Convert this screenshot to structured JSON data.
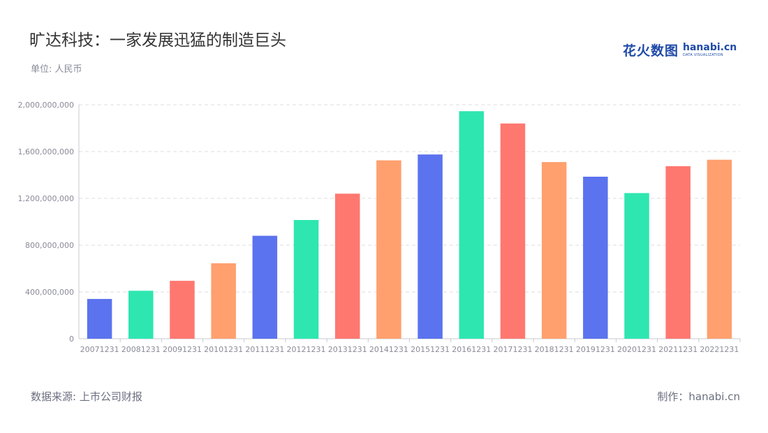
{
  "header": {
    "title": "旷达科技：一家发展迅猛的制造巨头",
    "unit": "单位: 人民币"
  },
  "logo": {
    "cn": "花火数图",
    "en": "hanabi.cn",
    "en_sub": "DATA VISUALIZATION"
  },
  "footer": {
    "source": "数据来源: 上市公司财报",
    "credit": "制作：hanabi.cn"
  },
  "chart_data": {
    "type": "bar",
    "categories": [
      "20071231",
      "20081231",
      "20091231",
      "20101231",
      "20111231",
      "20121231",
      "20131231",
      "20141231",
      "20151231",
      "20161231",
      "20171231",
      "20181231",
      "20191231",
      "20201231",
      "20211231",
      "20221231"
    ],
    "values": [
      340000000,
      410000000,
      495000000,
      645000000,
      880000000,
      1015000000,
      1240000000,
      1525000000,
      1575000000,
      1945000000,
      1840000000,
      1510000000,
      1385000000,
      1245000000,
      1475000000,
      1530000000
    ],
    "colors": [
      "#5b73ee",
      "#2ee6b0",
      "#ff7870",
      "#ffa06e"
    ],
    "ylim": [
      0,
      2000000000
    ],
    "yticks": [
      0,
      400000000,
      800000000,
      1200000000,
      1600000000,
      2000000000
    ],
    "ytick_labels": [
      "0",
      "400,000,000",
      "800,000,000",
      "1,200,000,000",
      "1,600,000,000",
      "2,000,000,000"
    ],
    "grid": true,
    "title": "旷达科技：一家发展迅猛的制造巨头",
    "xlabel": "",
    "ylabel": ""
  }
}
